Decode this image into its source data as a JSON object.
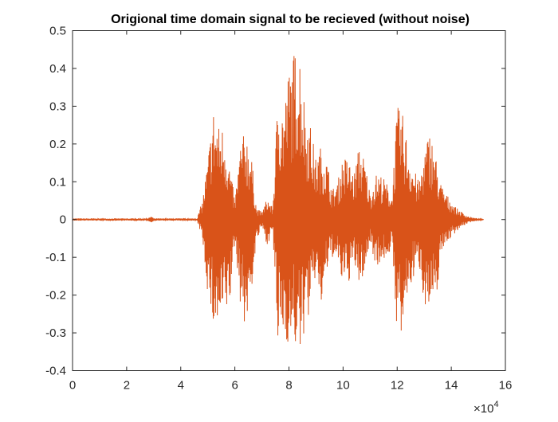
{
  "chart_data": {
    "type": "line",
    "title": "Origional time domain signal to be recieved (without noise)",
    "xlabel": "",
    "ylabel": "",
    "xlim": [
      0,
      16
    ],
    "ylim": [
      -0.4,
      0.5
    ],
    "x_ticks": [
      0,
      2,
      4,
      6,
      8,
      10,
      12,
      14,
      16
    ],
    "x_tick_labels": [
      "0",
      "2",
      "4",
      "6",
      "8",
      "10",
      "12",
      "14",
      "16"
    ],
    "y_ticks": [
      -0.4,
      -0.3,
      -0.2,
      -0.1,
      0,
      0.1,
      0.2,
      0.3,
      0.4,
      0.5
    ],
    "y_tick_labels": [
      "-0.4",
      "-0.3",
      "-0.2",
      "-0.1",
      "0",
      "0.1",
      "0.2",
      "0.3",
      "0.4",
      "0.5"
    ],
    "x_exponent_base": "×10",
    "x_exponent_power": "4",
    "grid": false,
    "line_color": "#D95319",
    "series": [
      {
        "envelope": {
          "x": [
            0.0,
            2.8,
            2.9,
            3.0,
            3.1,
            4.6,
            4.8,
            5.0,
            5.2,
            5.4,
            5.6,
            5.8,
            6.0,
            6.2,
            6.4,
            6.6,
            6.8,
            7.0,
            7.2,
            7.4,
            7.6,
            7.8,
            8.0,
            8.2,
            8.4,
            8.6,
            8.8,
            9.0,
            9.2,
            9.4,
            9.6,
            9.8,
            10.0,
            10.2,
            10.4,
            10.6,
            10.8,
            11.0,
            11.2,
            11.4,
            11.6,
            11.8,
            12.0,
            12.2,
            12.4,
            12.6,
            12.8,
            13.0,
            13.2,
            13.4,
            13.6,
            13.8,
            14.0,
            14.2,
            14.4,
            14.6,
            14.8,
            15.0,
            15.2
          ],
          "upper": [
            0.003,
            0.003,
            0.01,
            0.003,
            0.003,
            0.003,
            0.05,
            0.16,
            0.3,
            0.25,
            0.25,
            0.15,
            0.05,
            0.2,
            0.24,
            0.18,
            0.03,
            0.02,
            0.06,
            0.03,
            0.35,
            0.3,
            0.4,
            0.45,
            0.46,
            0.3,
            0.25,
            0.16,
            0.2,
            0.16,
            0.08,
            0.1,
            0.17,
            0.16,
            0.12,
            0.2,
            0.16,
            0.07,
            0.12,
            0.12,
            0.1,
            0.06,
            0.3,
            0.28,
            0.2,
            0.14,
            0.1,
            0.18,
            0.24,
            0.18,
            0.1,
            0.07,
            0.05,
            0.03,
            0.02,
            0.01,
            0.005,
            0.003,
            0.0
          ],
          "lower": [
            -0.003,
            -0.003,
            -0.01,
            -0.003,
            -0.003,
            -0.003,
            -0.05,
            -0.2,
            -0.29,
            -0.3,
            -0.26,
            -0.24,
            -0.06,
            -0.22,
            -0.3,
            -0.2,
            -0.06,
            -0.02,
            -0.07,
            -0.03,
            -0.36,
            -0.3,
            -0.34,
            -0.33,
            -0.38,
            -0.28,
            -0.25,
            -0.14,
            -0.24,
            -0.14,
            -0.1,
            -0.12,
            -0.18,
            -0.17,
            -0.12,
            -0.18,
            -0.14,
            -0.06,
            -0.12,
            -0.12,
            -0.1,
            -0.08,
            -0.3,
            -0.33,
            -0.2,
            -0.16,
            -0.12,
            -0.22,
            -0.25,
            -0.25,
            -0.1,
            -0.06,
            -0.05,
            -0.03,
            -0.02,
            -0.01,
            -0.005,
            -0.003,
            0.0
          ]
        }
      }
    ]
  }
}
